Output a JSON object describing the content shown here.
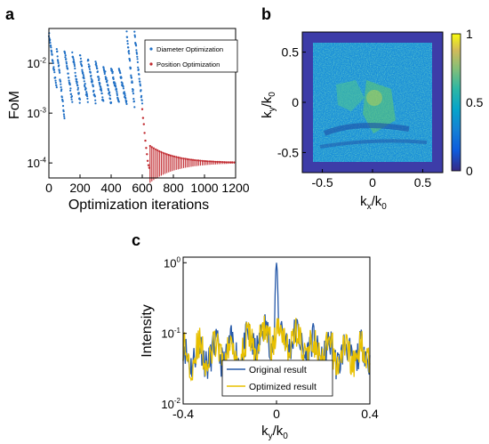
{
  "panels": {
    "a": "a",
    "b": "b",
    "c": "c"
  },
  "colors": {
    "blue": "#1f6fc5",
    "red": "#c0272d",
    "yellow": "#e8c000",
    "dark_blue": "#2558a8"
  },
  "chart_data": [
    {
      "id": "a",
      "type": "scatter",
      "xlabel": "Optimization iterations",
      "ylabel": "FoM",
      "yscale": "log",
      "xlim": [
        0,
        1200
      ],
      "ylim": [
        5e-05,
        0.05
      ],
      "xticks": [
        "0",
        "200",
        "400",
        "600",
        "800",
        "1000",
        "1200"
      ],
      "yticks": [
        {
          "base": "10",
          "exp": "-2",
          "value": 0.01
        },
        {
          "base": "10",
          "exp": "-3",
          "value": 0.001
        },
        {
          "base": "10",
          "exp": "-4",
          "value": 0.0001
        }
      ],
      "legend_position": "top-right",
      "series": [
        {
          "name": "Diameter Optimization",
          "color": "#1f6fc5",
          "segments": [
            {
              "x0": 0,
              "x1": 50,
              "ystart": 0.04,
              "yend": 0.003
            },
            {
              "x0": 50,
              "x1": 100,
              "ystart": 0.02,
              "yend": 0.0008
            },
            {
              "x0": 100,
              "x1": 150,
              "ystart": 0.018,
              "yend": 0.0018
            },
            {
              "x0": 150,
              "x1": 200,
              "ystart": 0.016,
              "yend": 0.0017
            },
            {
              "x0": 200,
              "x1": 250,
              "ystart": 0.014,
              "yend": 0.0017
            },
            {
              "x0": 250,
              "x1": 300,
              "ystart": 0.012,
              "yend": 0.0017
            },
            {
              "x0": 300,
              "x1": 350,
              "ystart": 0.011,
              "yend": 0.0016
            },
            {
              "x0": 350,
              "x1": 400,
              "ystart": 0.0095,
              "yend": 0.0016
            },
            {
              "x0": 400,
              "x1": 450,
              "ystart": 0.0085,
              "yend": 0.0016
            },
            {
              "x0": 450,
              "x1": 500,
              "ystart": 0.0075,
              "yend": 0.0015
            },
            {
              "x0": 500,
              "x1": 550,
              "ystart": 0.04,
              "yend": 0.0015
            },
            {
              "x0": 550,
              "x1": 600,
              "ystart": 0.04,
              "yend": 0.0015
            }
          ]
        },
        {
          "name": "Position Optimization",
          "color": "#c0272d",
          "points": [
            [
              600,
              0.0012
            ],
            [
              605,
              0.0008
            ],
            [
              610,
              0.0006
            ],
            [
              615,
              0.0004
            ],
            [
              620,
              0.00028
            ],
            [
              625,
              0.0002
            ],
            [
              630,
              0.00015
            ],
            [
              635,
              0.00011
            ],
            [
              640,
              9e-05
            ],
            [
              645,
              8e-05
            ]
          ],
          "converge": {
            "x0": 650,
            "x1": 1200,
            "y": 0.0001,
            "ymin0": 4e-05,
            "ymax0": 0.00022
          }
        }
      ]
    },
    {
      "id": "b",
      "type": "heatmap",
      "xlabel": "k",
      "xlabel_sub": "x",
      "xlabel_denom": "/k",
      "xlabel_denom_sub": "0",
      "ylabel": "k",
      "ylabel_sub": "y",
      "ylabel_denom": "/k",
      "ylabel_denom_sub": "0",
      "xlim": [
        -0.7,
        0.7
      ],
      "ylim": [
        -0.7,
        0.7
      ],
      "xticks": [
        "-0.5",
        "0",
        "0.5"
      ],
      "yticks": [
        "0.5",
        "0",
        "-0.5"
      ],
      "colorbar": {
        "min": 0,
        "max": 1,
        "ticks": [
          "1",
          "0.5",
          "0"
        ],
        "colormap": "parula"
      }
    },
    {
      "id": "c",
      "type": "line",
      "xlabel": "k",
      "xlabel_sub": "y",
      "xlabel_denom": "/k",
      "xlabel_denom_sub": "0",
      "ylabel": "Intensity",
      "yscale": "log",
      "xlim": [
        -0.4,
        0.4
      ],
      "ylim": [
        0.01,
        1.2
      ],
      "xticks": [
        "-0.4",
        "0",
        "0.4"
      ],
      "yticks": [
        {
          "base": "10",
          "exp": "0",
          "value": 1
        },
        {
          "base": "10",
          "exp": "-1",
          "value": 0.1
        },
        {
          "base": "10",
          "exp": "-2",
          "value": 0.01
        }
      ],
      "legend_position": "bottom-right",
      "series": [
        {
          "name": "Original result",
          "color": "#2558a8",
          "peak": 1.0,
          "baseline": 0.05
        },
        {
          "name": "Optimized result",
          "color": "#e8c000",
          "peak": 0.1,
          "baseline": 0.05
        }
      ]
    }
  ]
}
